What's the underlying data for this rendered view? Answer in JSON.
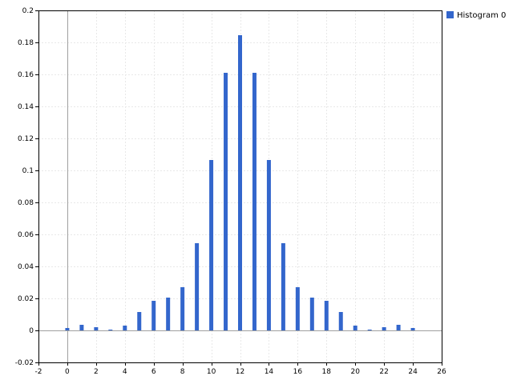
{
  "chart_data": {
    "type": "bar",
    "title": "",
    "xlabel": "",
    "ylabel": "",
    "xlim": [
      -2,
      26
    ],
    "ylim": [
      -0.02,
      0.2
    ],
    "x_ticks": [
      -2,
      0,
      2,
      4,
      6,
      8,
      10,
      12,
      14,
      16,
      18,
      20,
      22,
      24,
      26
    ],
    "y_ticks": [
      -0.02,
      0,
      0.02,
      0.04,
      0.06,
      0.08,
      0.1,
      0.12,
      0.14,
      0.16,
      0.18,
      0.2
    ],
    "grid": true,
    "legend_position": "top-right",
    "series": [
      {
        "name": "Histogram 0",
        "color": "#3366cc",
        "x": [
          0,
          1,
          2,
          3,
          4,
          5,
          6,
          7,
          8,
          9,
          10,
          11,
          12,
          13,
          14,
          15,
          16,
          17,
          18,
          19,
          20,
          21,
          22,
          23,
          24
        ],
        "values": [
          0.0015,
          0.0035,
          0.002,
          0.0005,
          0.003,
          0.0115,
          0.0185,
          0.0205,
          0.027,
          0.0545,
          0.1065,
          0.161,
          0.1845,
          0.161,
          0.1065,
          0.0545,
          0.027,
          0.0205,
          0.0185,
          0.0115,
          0.003,
          0.0005,
          0.002,
          0.0035,
          0.0015
        ]
      }
    ]
  }
}
